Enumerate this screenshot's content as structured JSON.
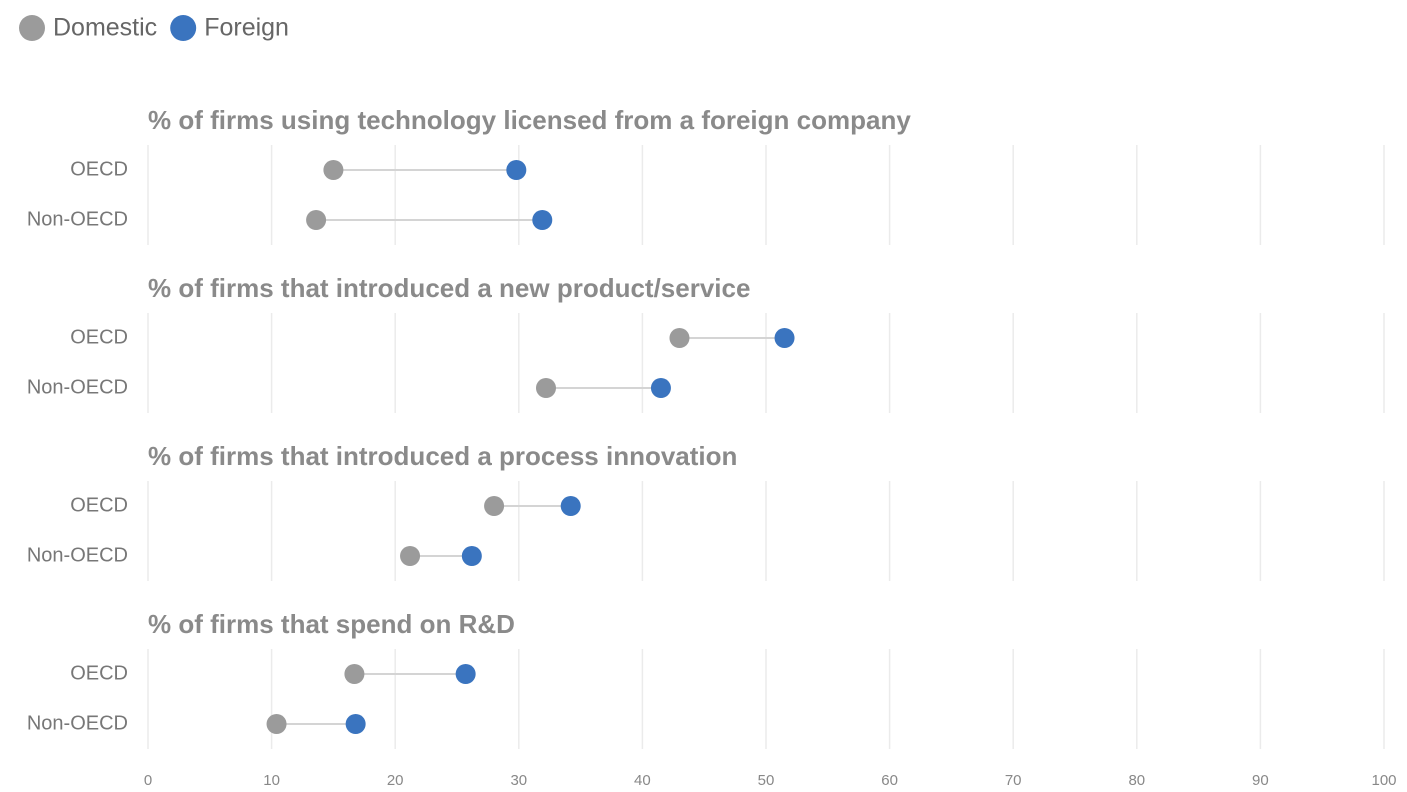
{
  "chart_data": {
    "type": "dumbbell",
    "series": [
      {
        "name": "Domestic",
        "color": "#9b9b9b",
        "values": [
          [
            15,
            13.6
          ],
          [
            43,
            32.2
          ],
          [
            28,
            21.2
          ],
          [
            16.7,
            10.4
          ]
        ]
      },
      {
        "name": "Foreign",
        "color": "#3a74bf",
        "values": [
          [
            29.8,
            31.9
          ],
          [
            51.5,
            41.5
          ],
          [
            34.2,
            26.2
          ],
          [
            25.7,
            16.8
          ]
        ]
      }
    ],
    "panels": [
      {
        "title": "% of firms using technology licensed from a foreign company",
        "categories": [
          "OECD",
          "Non-OECD"
        ]
      },
      {
        "title": "% of firms that introduced a new product/service",
        "categories": [
          "OECD",
          "Non-OECD"
        ]
      },
      {
        "title": "% of firms that introduced a process innovation",
        "categories": [
          "OECD",
          "Non-OECD"
        ]
      },
      {
        "title": "% of firms that spend on R&D",
        "categories": [
          "OECD",
          "Non-OECD"
        ]
      }
    ],
    "xlim": [
      0,
      100
    ],
    "xticks": [
      0,
      10,
      20,
      30,
      40,
      50,
      60,
      70,
      80,
      90,
      100
    ],
    "grid": true
  }
}
